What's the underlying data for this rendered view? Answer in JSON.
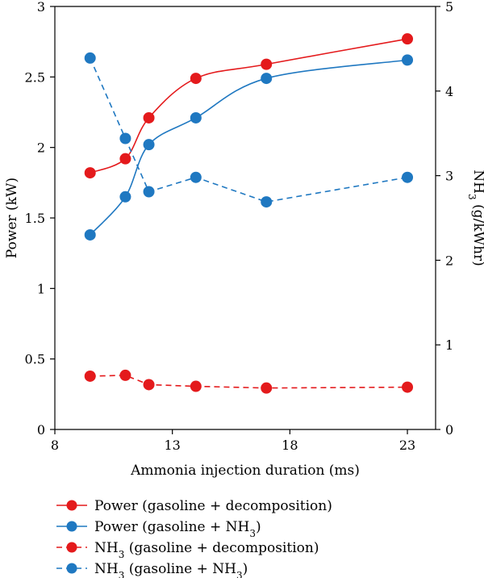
{
  "chart_data": {
    "type": "line",
    "xlabel": "Ammonia injection duration (ms)",
    "ylabel_left": "Power (kW)",
    "ylabel_right_parts": [
      "NH",
      "3",
      " (g/kWhr)"
    ],
    "xlim": [
      8,
      24.2
    ],
    "ylim_left": [
      0,
      3
    ],
    "ylim_right": [
      0,
      5
    ],
    "x_ticks": [
      8,
      13,
      18,
      23
    ],
    "y_left_ticks": [
      0,
      0.5,
      1,
      1.5,
      2,
      2.5,
      3
    ],
    "y_right_ticks": [
      0,
      1,
      2,
      3,
      4,
      5
    ],
    "grid": false,
    "legend_position": "bottom",
    "series": [
      {
        "key": "power_decomp",
        "axis": "left",
        "color": "#e41a1c",
        "linestyle": "solid",
        "legend_parts": [
          "Power (gasoline + decomposition)"
        ],
        "x": [
          9.5,
          11,
          12,
          14,
          17,
          23
        ],
        "y": [
          1.82,
          1.92,
          2.21,
          2.49,
          2.59,
          2.77
        ]
      },
      {
        "key": "power_nh3",
        "axis": "left",
        "color": "#1f78c1",
        "linestyle": "solid",
        "legend_parts": [
          "Power (gasoline + NH",
          "3",
          ")"
        ],
        "x": [
          9.5,
          11,
          12,
          14,
          17,
          23
        ],
        "y": [
          1.38,
          1.65,
          2.02,
          2.21,
          2.49,
          2.62
        ]
      },
      {
        "key": "nh3_decomp",
        "axis": "right",
        "color": "#e41a1c",
        "linestyle": "dashed",
        "legend_parts": [
          "NH",
          "3",
          " (gasoline + decomposition)"
        ],
        "x": [
          9.5,
          11,
          12,
          14,
          17,
          23
        ],
        "y": [
          0.63,
          0.64,
          0.53,
          0.51,
          0.49,
          0.5
        ]
      },
      {
        "key": "nh3_nh3",
        "axis": "right",
        "color": "#1f78c1",
        "linestyle": "dashed",
        "legend_parts": [
          "NH",
          "3",
          " (gasoline + NH",
          "3",
          ")"
        ],
        "x": [
          9.5,
          11,
          12,
          14,
          17,
          23
        ],
        "y": [
          4.39,
          3.44,
          2.81,
          2.98,
          2.69,
          2.98
        ]
      }
    ]
  }
}
